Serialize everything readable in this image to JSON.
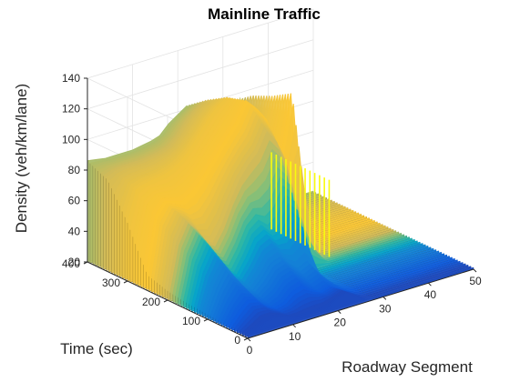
{
  "chart_data": {
    "type": "area",
    "surface_kind": "3d-waterfall",
    "title": "Mainline Traffic",
    "xlabel": "Roadway Segment",
    "ylabel": "Time (sec)",
    "zlabel": "Density (veh/km/lane)",
    "xlim": [
      0,
      50
    ],
    "ylim": [
      0,
      400
    ],
    "zlim": [
      20,
      140
    ],
    "x_ticks": [
      "0",
      "10",
      "20",
      "30",
      "40",
      "50"
    ],
    "y_ticks": [
      "0",
      "100",
      "200",
      "300",
      "400"
    ],
    "z_ticks": [
      "20",
      "40",
      "60",
      "80",
      "100",
      "120",
      "140"
    ],
    "grid": true,
    "colormap": [
      "#352a87",
      "#0f5cdd",
      "#1481d6",
      "#06a4ca",
      "#2eb7a4",
      "#87bf77",
      "#d1bb59",
      "#fec832",
      "#f9fb0e"
    ],
    "x": [
      0,
      2,
      4,
      6,
      8,
      10,
      12,
      14,
      16,
      18,
      20,
      22,
      24,
      26,
      28,
      30,
      32,
      34,
      36,
      38,
      40,
      42,
      44,
      46,
      48,
      50
    ],
    "series": [
      {
        "time": 0,
        "values": [
          22,
          24,
          27,
          28,
          27,
          24,
          23,
          22,
          22,
          24,
          28,
          30,
          26,
          22,
          21,
          21,
          21,
          21,
          21,
          21,
          21,
          21,
          21,
          21,
          21,
          21
        ]
      },
      {
        "time": 50,
        "values": [
          22,
          30,
          36,
          34,
          28,
          25,
          27,
          33,
          35,
          30,
          26,
          28,
          25,
          22,
          21,
          21,
          21,
          21,
          21,
          21,
          21,
          21,
          21,
          21,
          21,
          21
        ]
      },
      {
        "time": 100,
        "values": [
          23,
          38,
          48,
          42,
          33,
          30,
          36,
          44,
          46,
          40,
          35,
          38,
          30,
          22,
          21,
          21,
          21,
          21,
          21,
          21,
          21,
          21,
          21,
          21,
          21,
          21
        ]
      },
      {
        "time": 150,
        "values": [
          24,
          48,
          60,
          52,
          40,
          36,
          46,
          58,
          62,
          56,
          60,
          72,
          66,
          24,
          21,
          21,
          21,
          21,
          21,
          21,
          21,
          21,
          21,
          21,
          21,
          21
        ]
      },
      {
        "time": 200,
        "values": [
          26,
          56,
          68,
          62,
          52,
          48,
          58,
          72,
          84,
          92,
          98,
          110,
          102,
          88,
          64,
          40,
          22,
          21,
          21,
          21,
          21,
          21,
          21,
          21,
          21,
          21
        ]
      },
      {
        "time": 250,
        "values": [
          30,
          66,
          74,
          72,
          70,
          74,
          80,
          88,
          96,
          104,
          112,
          124,
          118,
          110,
          96,
          84,
          120,
          24,
          21,
          21,
          21,
          21,
          21,
          21,
          21,
          21
        ]
      },
      {
        "time": 300,
        "values": [
          58,
          78,
          80,
          81,
          82,
          84,
          88,
          94,
          102,
          110,
          116,
          120,
          114,
          108,
          100,
          90,
          112,
          30,
          21,
          21,
          21,
          21,
          21,
          21,
          21,
          21
        ]
      },
      {
        "time": 350,
        "values": [
          80,
          83,
          84,
          84,
          84,
          85,
          86,
          88,
          94,
          102,
          108,
          112,
          104,
          98,
          94,
          90,
          106,
          28,
          21,
          21,
          21,
          21,
          21,
          21,
          21,
          21
        ]
      },
      {
        "time": 400,
        "values": [
          86,
          85,
          84,
          84,
          84,
          84,
          85,
          86,
          88,
          94,
          98,
          102,
          96,
          92,
          90,
          88,
          96,
          26,
          21,
          21,
          21,
          21,
          21,
          21,
          21,
          21
        ]
      }
    ]
  }
}
